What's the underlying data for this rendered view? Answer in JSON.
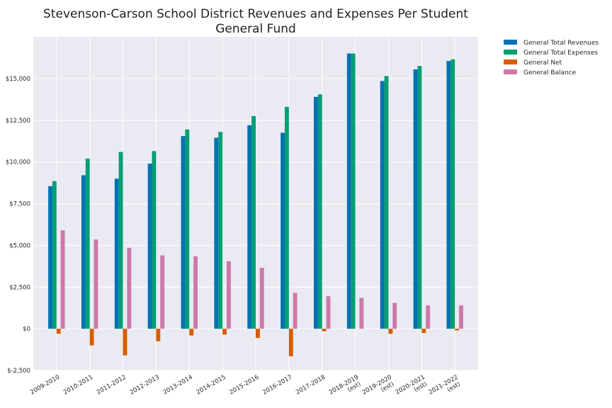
{
  "chart_data": {
    "type": "bar",
    "title": "Stevenson-Carson School District Revenues and Expenses Per Student",
    "subtitle": "General Fund",
    "xlabel": "",
    "ylabel": "",
    "ylim": [
      -2500,
      17500
    ],
    "yticks": [
      -2500,
      0,
      2500,
      5000,
      7500,
      10000,
      12500,
      15000
    ],
    "ytick_labels": [
      "$-2,500",
      "$0",
      "$2,500",
      "$5,000",
      "$7,500",
      "$10,000",
      "$12,500",
      "$15,000"
    ],
    "grid": true,
    "legend_position": "outside-top-right",
    "categories": [
      [
        "2009-2010"
      ],
      [
        "2010-2011"
      ],
      [
        "2011-2012"
      ],
      [
        "2012-2013"
      ],
      [
        "2013-2014"
      ],
      [
        "2014-2015"
      ],
      [
        "2015-2016"
      ],
      [
        "2016-2017"
      ],
      [
        "2017-2018"
      ],
      [
        "2018-2019",
        "(est)"
      ],
      [
        "2019-2020",
        "(est)"
      ],
      [
        "2020-2021",
        "(est)"
      ],
      [
        "2021-2022",
        "(est)"
      ]
    ],
    "series": [
      {
        "name": "General Total Revenues",
        "color": "#0072b2",
        "values": [
          8550,
          9200,
          9000,
          9900,
          11550,
          11450,
          12200,
          11750,
          13900,
          16500,
          14850,
          15550,
          16050
        ]
      },
      {
        "name": "General Total Expenses",
        "color": "#009e73",
        "values": [
          8850,
          10200,
          10600,
          10650,
          11950,
          11800,
          12750,
          13300,
          14050,
          16500,
          15150,
          15750,
          16150
        ]
      },
      {
        "name": "General Net",
        "color": "#d55e00",
        "values": [
          -300,
          -1000,
          -1600,
          -750,
          -400,
          -350,
          -550,
          -1650,
          -150,
          0,
          -300,
          -250,
          -100
        ]
      },
      {
        "name": "General Balance",
        "color": "#cc79a7",
        "values": [
          5900,
          5350,
          4850,
          4400,
          4350,
          4050,
          3650,
          2150,
          1950,
          1850,
          1550,
          1400,
          1400
        ]
      }
    ]
  }
}
